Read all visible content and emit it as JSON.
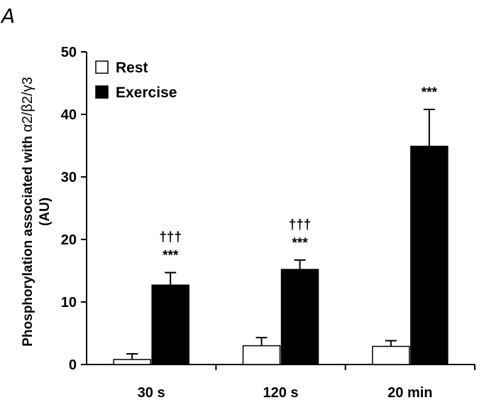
{
  "panel_label": "A",
  "chart_data": {
    "type": "bar",
    "categories": [
      "30 s",
      "120 s",
      "20 min"
    ],
    "series": [
      {
        "name": "Rest",
        "values": [
          0.8,
          3.0,
          2.9
        ],
        "errors": [
          0.9,
          1.3,
          0.9
        ],
        "color": "#ffffff"
      },
      {
        "name": "Exercise",
        "values": [
          12.7,
          15.2,
          34.9
        ],
        "errors": [
          2.0,
          1.5,
          5.9
        ],
        "color": "#000000"
      }
    ],
    "annotations": [
      {
        "category": "30 s",
        "series": "Exercise",
        "lines": [
          "†††",
          "***"
        ]
      },
      {
        "category": "120 s",
        "series": "Exercise",
        "lines": [
          "†††",
          "***"
        ]
      },
      {
        "category": "20 min",
        "series": "Exercise",
        "lines": [
          "***"
        ]
      }
    ],
    "ylabel_line1": "Phosphorylation associated with ",
    "ylabel_greek": "α2/β2/γ3",
    "ylabel_line2": "(AU)",
    "xlabel": "",
    "title": "",
    "yticks": [
      0,
      10,
      20,
      30,
      40,
      50
    ],
    "ylim": [
      0,
      50
    ],
    "grid": false,
    "legend_position": "top-left"
  }
}
